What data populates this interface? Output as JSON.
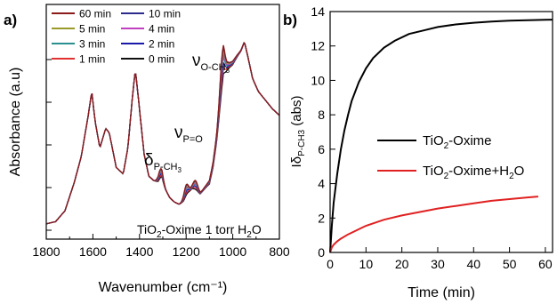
{
  "panel_a": {
    "label": "a)",
    "annotation": {
      "prefix": "TiO",
      "sub": "2",
      "suffix": "-Oxime 1 torr H",
      "sub2": "2",
      "suffix2": "O"
    },
    "peak_labels": [
      {
        "symbol": "δ",
        "sub": "P-CH",
        "sub3": "3"
      },
      {
        "symbol": "ν",
        "sub": "P=O",
        "sub3": ""
      },
      {
        "symbol": "ν",
        "sub": "O-CH",
        "sub3": "3"
      }
    ]
  },
  "panel_b": {
    "label": "b)"
  },
  "chart_data": [
    {
      "type": "line",
      "xlabel": "Wavenumber (cm⁻¹)",
      "ylabel": "Absorbance (a.u)",
      "xlim": [
        1800,
        800
      ],
      "x_reversed": true,
      "x_ticks": [
        1800,
        1600,
        1400,
        1200,
        1000,
        800
      ],
      "y_ticks_labeled": false,
      "legend_position": "top-left",
      "series": [
        {
          "name": "60 min",
          "color": "#8b1a1a",
          "peak_scale": 1.0
        },
        {
          "name": "10 min",
          "color": "#2b2b8c",
          "peak_scale": 0.95
        },
        {
          "name": "5 min",
          "color": "#9a9a2a",
          "peak_scale": 0.85
        },
        {
          "name": "4 min",
          "color": "#c040c0",
          "peak_scale": 0.75
        },
        {
          "name": "3 min",
          "color": "#2a8f8f",
          "peak_scale": 0.65
        },
        {
          "name": "2 min",
          "color": "#1a1aaa",
          "peak_scale": 0.5
        },
        {
          "name": "1 min",
          "color": "#e03030",
          "peak_scale": 0.35
        },
        {
          "name": "0 min",
          "color": "#111111",
          "peak_scale": 0.2
        }
      ],
      "base_points": [
        [
          1800,
          0.05
        ],
        [
          1760,
          0.06
        ],
        [
          1720,
          0.11
        ],
        [
          1680,
          0.24
        ],
        [
          1650,
          0.36
        ],
        [
          1620,
          0.55
        ],
        [
          1605,
          0.66
        ],
        [
          1590,
          0.52
        ],
        [
          1570,
          0.4
        ],
        [
          1545,
          0.49
        ],
        [
          1530,
          0.47
        ],
        [
          1500,
          0.31
        ],
        [
          1470,
          0.28
        ],
        [
          1450,
          0.4
        ],
        [
          1430,
          0.64
        ],
        [
          1418,
          0.76
        ],
        [
          1405,
          0.63
        ],
        [
          1380,
          0.37
        ],
        [
          1360,
          0.27
        ],
        [
          1340,
          0.25
        ],
        [
          1320,
          0.24
        ],
        [
          1305,
          0.26
        ],
        [
          1290,
          0.21
        ],
        [
          1270,
          0.17
        ],
        [
          1250,
          0.15
        ],
        [
          1230,
          0.14
        ],
        [
          1210,
          0.15
        ],
        [
          1190,
          0.19
        ],
        [
          1175,
          0.21
        ],
        [
          1160,
          0.2
        ],
        [
          1140,
          0.19
        ],
        [
          1120,
          0.22
        ],
        [
          1100,
          0.25
        ],
        [
          1085,
          0.33
        ],
        [
          1070,
          0.45
        ],
        [
          1055,
          0.6
        ],
        [
          1040,
          0.75
        ],
        [
          1020,
          0.79
        ],
        [
          1000,
          0.8
        ],
        [
          980,
          0.83
        ],
        [
          965,
          0.85
        ],
        [
          950,
          0.89
        ],
        [
          935,
          0.82
        ],
        [
          915,
          0.72
        ],
        [
          890,
          0.66
        ],
        [
          860,
          0.62
        ],
        [
          830,
          0.58
        ],
        [
          800,
          0.55
        ]
      ],
      "peak_growth": [
        [
          1310,
          0.05
        ],
        [
          1200,
          0.06
        ],
        [
          1160,
          0.05
        ],
        [
          1045,
          0.14
        ]
      ]
    },
    {
      "type": "line",
      "xlabel": "Time (min)",
      "ylabel": "Iδ P-CH3 (abs)",
      "xlim": [
        0,
        62
      ],
      "ylim": [
        0,
        14
      ],
      "x_ticks": [
        0,
        10,
        20,
        30,
        40,
        50,
        60
      ],
      "y_ticks": [
        0,
        2,
        4,
        6,
        8,
        10,
        12,
        14
      ],
      "legend_position": "center-right",
      "series": [
        {
          "name": "TiO2-Oxime",
          "legend_parts": [
            "TiO",
            "2",
            "-Oxime"
          ],
          "color": "#000000",
          "points": [
            [
              0,
              0
            ],
            [
              0.5,
              1.6
            ],
            [
              1,
              2.9
            ],
            [
              2,
              4.6
            ],
            [
              3,
              6.0
            ],
            [
              4,
              7.1
            ],
            [
              5,
              8.0
            ],
            [
              6,
              8.8
            ],
            [
              8,
              9.9
            ],
            [
              10,
              10.7
            ],
            [
              12,
              11.3
            ],
            [
              15,
              11.9
            ],
            [
              18,
              12.3
            ],
            [
              22,
              12.7
            ],
            [
              26,
              12.9
            ],
            [
              30,
              13.1
            ],
            [
              35,
              13.25
            ],
            [
              40,
              13.35
            ],
            [
              45,
              13.42
            ],
            [
              50,
              13.47
            ],
            [
              55,
              13.5
            ],
            [
              60,
              13.52
            ],
            [
              62,
              13.53
            ]
          ]
        },
        {
          "name": "TiO2-Oxime+H2O",
          "legend_parts": [
            "TiO",
            "2",
            "-Oxime+H",
            "2",
            "O"
          ],
          "color": "#e02020",
          "points": [
            [
              0,
              0
            ],
            [
              0.5,
              0.3
            ],
            [
              1,
              0.45
            ],
            [
              2,
              0.65
            ],
            [
              3,
              0.8
            ],
            [
              5,
              1.05
            ],
            [
              8,
              1.35
            ],
            [
              10,
              1.55
            ],
            [
              15,
              1.9
            ],
            [
              20,
              2.15
            ],
            [
              25,
              2.35
            ],
            [
              30,
              2.55
            ],
            [
              35,
              2.7
            ],
            [
              40,
              2.85
            ],
            [
              45,
              3.0
            ],
            [
              50,
              3.1
            ],
            [
              55,
              3.2
            ],
            [
              58,
              3.25
            ]
          ]
        }
      ]
    }
  ]
}
